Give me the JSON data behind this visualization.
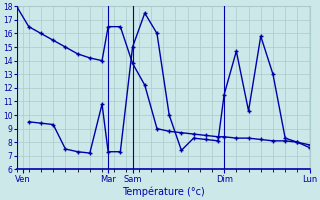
{
  "xlabel": "Température (°c)",
  "bg_color": "#cce8e8",
  "line_color": "#0000aa",
  "grid_color": "#aacccc",
  "ylim": [
    6,
    18
  ],
  "xlim": [
    0,
    24
  ],
  "yticks": [
    6,
    7,
    8,
    9,
    10,
    11,
    12,
    13,
    14,
    15,
    16,
    17,
    18
  ],
  "vlines": [
    0,
    7.5,
    9.5,
    17.0,
    24
  ],
  "xtick_positions": [
    0.5,
    7.5,
    9.5,
    17.0,
    24
  ],
  "xtick_labels": [
    "Ven",
    "Mar",
    "Sam",
    "Dim",
    "Lun"
  ],
  "line1_x": [
    0,
    1,
    2,
    3,
    4,
    5,
    6,
    7,
    7.5,
    8.5,
    9.5,
    10.5,
    11.5,
    12.5,
    13.5,
    14.5,
    15.5,
    16.5,
    17,
    18,
    19,
    20,
    21,
    22,
    23,
    24
  ],
  "line1_y": [
    18,
    16.5,
    16.0,
    15.5,
    15.0,
    14.5,
    14.2,
    14.0,
    16.5,
    16.5,
    13.8,
    12.2,
    9.0,
    8.8,
    8.7,
    8.6,
    8.5,
    8.4,
    8.4,
    8.3,
    8.3,
    8.2,
    8.1,
    8.1,
    8.0,
    7.8
  ],
  "line2_x": [
    1,
    2,
    3,
    4,
    5,
    6,
    7,
    7.5,
    8.5,
    9.5,
    10.5,
    11.5,
    12.5,
    13.5,
    14.5,
    15.5,
    16.5,
    17,
    18,
    19,
    20,
    21,
    22,
    23,
    24
  ],
  "line2_y": [
    9.5,
    9.4,
    9.3,
    7.5,
    7.3,
    7.2,
    10.8,
    7.3,
    7.3,
    15.0,
    17.5,
    16.0,
    10.0,
    7.4,
    8.3,
    8.2,
    8.1,
    11.5,
    14.7,
    10.3,
    15.8,
    13.0,
    8.3,
    8.0,
    7.6
  ]
}
